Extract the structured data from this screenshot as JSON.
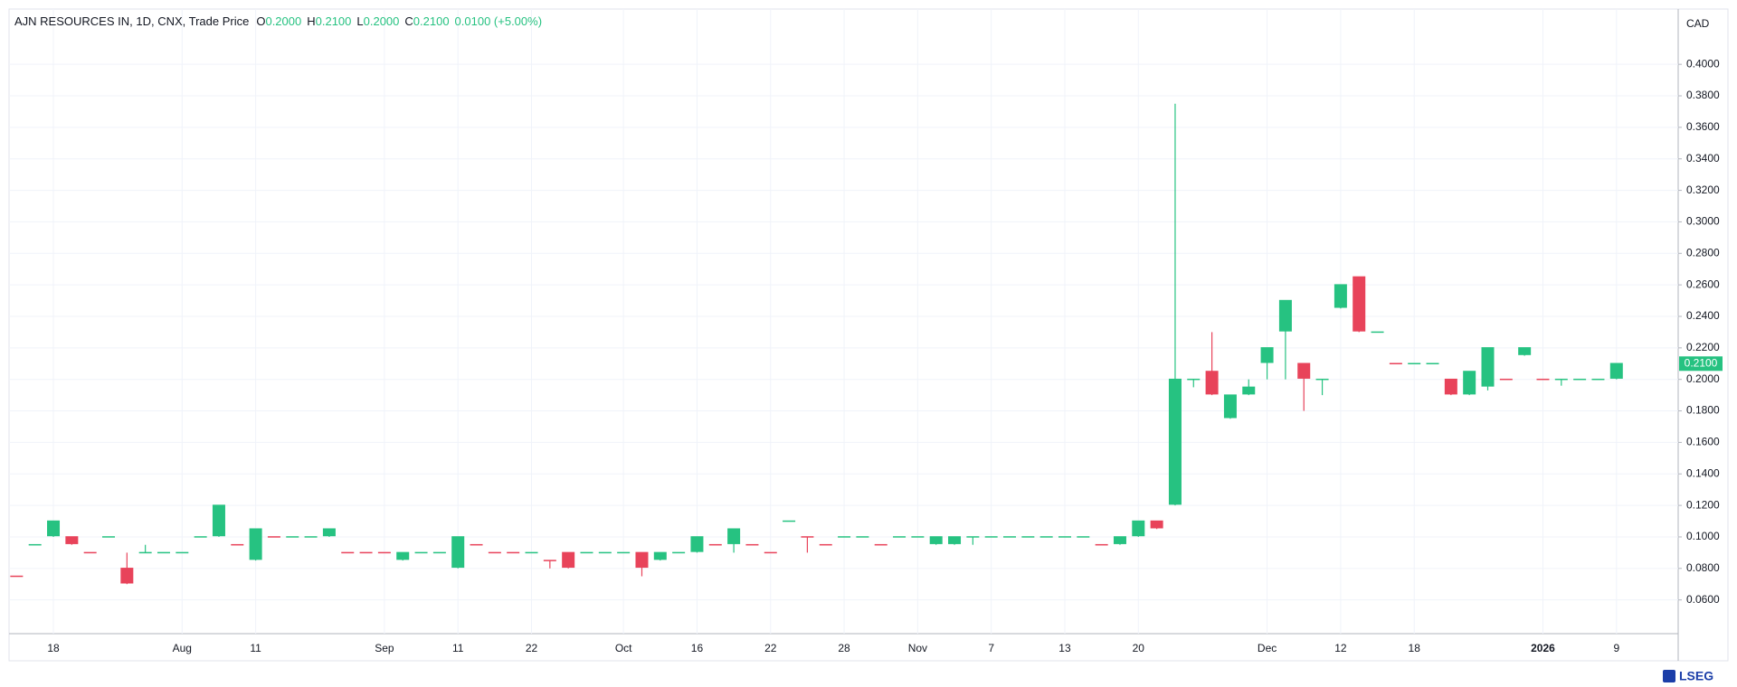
{
  "chart_data": {
    "type": "candlestick",
    "header": {
      "symbol": "AJN RESOURCES IN, 1D, CNX, Trade Price",
      "ohlc": [
        {
          "key": "O",
          "value": "0.2000"
        },
        {
          "key": "H",
          "value": "0.2100"
        },
        {
          "key": "L",
          "value": "0.2000"
        },
        {
          "key": "C",
          "value": "0.2100"
        }
      ],
      "change": "0.0100 (+5.00%)"
    },
    "currency": "CAD",
    "brand": "LSEG",
    "last_price": {
      "value": 0.21,
      "label": "0.2100"
    },
    "categories": [
      null,
      null,
      "18",
      null,
      null,
      null,
      null,
      null,
      null,
      "Aug",
      null,
      null,
      null,
      "11",
      null,
      null,
      null,
      null,
      null,
      null,
      "Sep",
      null,
      null,
      null,
      "11",
      null,
      null,
      null,
      "22",
      null,
      null,
      null,
      null,
      "Oct",
      null,
      null,
      null,
      "16",
      null,
      null,
      null,
      "22",
      null,
      null,
      null,
      "28",
      null,
      null,
      null,
      "Nov",
      null,
      null,
      null,
      "7",
      null,
      null,
      null,
      "13",
      null,
      null,
      null,
      "20",
      null,
      null,
      null,
      null,
      null,
      null,
      "Dec",
      null,
      null,
      null,
      "12",
      null,
      null,
      null,
      "18",
      null,
      null,
      null,
      null,
      null,
      null,
      "2026",
      null,
      null,
      null,
      "9"
    ],
    "bold_categories": [
      "2026"
    ],
    "open": [
      0.075,
      0.095,
      0.1,
      0.1,
      0.09,
      0.1,
      0.08,
      0.09,
      0.09,
      0.09,
      0.1,
      0.1,
      0.095,
      0.085,
      0.1,
      0.1,
      0.1,
      0.1,
      0.09,
      0.09,
      0.09,
      0.085,
      0.09,
      0.09,
      0.08,
      0.095,
      0.09,
      0.09,
      0.09,
      0.085,
      0.09,
      0.09,
      0.09,
      0.09,
      0.09,
      0.085,
      0.09,
      0.09,
      0.095,
      0.095,
      0.095,
      0.09,
      0.11,
      0.1,
      0.095,
      0.1,
      0.1,
      0.095,
      0.1,
      0.1,
      0.095,
      0.095,
      0.1,
      0.1,
      0.1,
      0.1,
      0.1,
      0.1,
      0.1,
      0.095,
      0.095,
      0.1,
      0.11,
      0.12,
      0.2,
      0.205,
      0.175,
      0.19,
      0.21,
      0.23,
      0.21,
      0.2,
      0.245,
      0.265,
      0.23,
      0.21,
      0.21,
      0.21,
      0.2,
      0.19,
      0.195,
      0.2,
      0.215,
      0.2,
      0.2,
      0.2,
      0.2,
      0.2
    ],
    "high": [
      0.075,
      0.095,
      0.11,
      0.1,
      0.09,
      0.1,
      0.09,
      0.095,
      0.09,
      0.09,
      0.1,
      0.12,
      0.095,
      0.105,
      0.1,
      0.1,
      0.1,
      0.105,
      0.09,
      0.09,
      0.09,
      0.09,
      0.09,
      0.09,
      0.1,
      0.095,
      0.09,
      0.09,
      0.09,
      0.085,
      0.09,
      0.09,
      0.09,
      0.09,
      0.09,
      0.09,
      0.09,
      0.1,
      0.095,
      0.105,
      0.095,
      0.09,
      0.11,
      0.1,
      0.095,
      0.1,
      0.1,
      0.095,
      0.1,
      0.1,
      0.1,
      0.1,
      0.1,
      0.1,
      0.1,
      0.1,
      0.1,
      0.1,
      0.1,
      0.095,
      0.1,
      0.11,
      0.11,
      0.375,
      0.2,
      0.23,
      0.19,
      0.2,
      0.22,
      0.25,
      0.21,
      0.2,
      0.26,
      0.265,
      0.23,
      0.21,
      0.21,
      0.21,
      0.2,
      0.205,
      0.22,
      0.2,
      0.22,
      0.2,
      0.2,
      0.2,
      0.2,
      0.21
    ],
    "low": [
      0.075,
      0.095,
      0.1,
      0.095,
      0.09,
      0.1,
      0.07,
      0.09,
      0.09,
      0.09,
      0.1,
      0.1,
      0.095,
      0.085,
      0.1,
      0.1,
      0.1,
      0.1,
      0.09,
      0.09,
      0.09,
      0.085,
      0.09,
      0.09,
      0.08,
      0.095,
      0.09,
      0.09,
      0.09,
      0.08,
      0.08,
      0.09,
      0.09,
      0.09,
      0.075,
      0.085,
      0.09,
      0.09,
      0.095,
      0.09,
      0.095,
      0.09,
      0.11,
      0.09,
      0.095,
      0.1,
      0.1,
      0.095,
      0.1,
      0.1,
      0.095,
      0.095,
      0.095,
      0.1,
      0.1,
      0.1,
      0.1,
      0.1,
      0.1,
      0.095,
      0.095,
      0.1,
      0.105,
      0.12,
      0.195,
      0.19,
      0.175,
      0.19,
      0.2,
      0.2,
      0.18,
      0.19,
      0.245,
      0.23,
      0.23,
      0.21,
      0.21,
      0.21,
      0.19,
      0.19,
      0.193,
      0.2,
      0.215,
      0.2,
      0.196,
      0.2,
      0.2,
      0.2
    ],
    "close": [
      0.075,
      0.095,
      0.11,
      0.095,
      0.09,
      0.1,
      0.07,
      0.09,
      0.09,
      0.09,
      0.1,
      0.12,
      0.095,
      0.105,
      0.1,
      0.1,
      0.1,
      0.105,
      0.09,
      0.09,
      0.09,
      0.09,
      0.09,
      0.09,
      0.1,
      0.095,
      0.09,
      0.09,
      0.09,
      0.085,
      0.08,
      0.09,
      0.09,
      0.09,
      0.08,
      0.09,
      0.09,
      0.1,
      0.095,
      0.105,
      0.095,
      0.09,
      0.11,
      0.1,
      0.095,
      0.1,
      0.1,
      0.095,
      0.1,
      0.1,
      0.1,
      0.1,
      0.1,
      0.1,
      0.1,
      0.1,
      0.1,
      0.1,
      0.1,
      0.095,
      0.1,
      0.11,
      0.105,
      0.2,
      0.2,
      0.19,
      0.19,
      0.195,
      0.22,
      0.25,
      0.2,
      0.2,
      0.26,
      0.23,
      0.23,
      0.21,
      0.21,
      0.21,
      0.19,
      0.205,
      0.22,
      0.2,
      0.22,
      0.2,
      0.2,
      0.2,
      0.2,
      0.21
    ],
    "candle_colors": [
      "#e8435a",
      "#26c281",
      "#26c281",
      "#e8435a",
      "#e8435a",
      "#26c281",
      "#e8435a",
      "#26c281",
      "#26c281",
      "#26c281",
      "#26c281",
      "#26c281",
      "#e8435a",
      "#26c281",
      "#e8435a",
      "#26c281",
      "#26c281",
      "#26c281",
      "#e8435a",
      "#e8435a",
      "#e8435a",
      "#26c281",
      "#26c281",
      "#26c281",
      "#26c281",
      "#e8435a",
      "#e8435a",
      "#e8435a",
      "#26c281",
      "#e8435a",
      "#e8435a",
      "#26c281",
      "#26c281",
      "#26c281",
      "#e8435a",
      "#26c281",
      "#26c281",
      "#26c281",
      "#e8435a",
      "#26c281",
      "#e8435a",
      "#e8435a",
      "#26c281",
      "#e8435a",
      "#e8435a",
      "#26c281",
      "#26c281",
      "#e8435a",
      "#26c281",
      "#26c281",
      "#26c281",
      "#26c281",
      "#26c281",
      "#26c281",
      "#26c281",
      "#26c281",
      "#26c281",
      "#26c281",
      "#26c281",
      "#e8435a",
      "#26c281",
      "#26c281",
      "#e8435a",
      "#26c281",
      "#26c281",
      "#e8435a",
      "#26c281",
      "#26c281",
      "#26c281",
      "#26c281",
      "#e8435a",
      "#26c281",
      "#26c281",
      "#e8435a",
      "#26c281",
      "#e8435a",
      "#26c281",
      "#26c281",
      "#e8435a",
      "#26c281",
      "#26c281",
      "#e8435a",
      "#26c281",
      "#e8435a",
      "#26c281",
      "#26c281",
      "#26c281",
      "#26c281"
    ],
    "up_color": "#26c281",
    "ylim": [
      0.0403,
      0.4351
    ],
    "yticks": [
      {
        "value": 0.06,
        "label": "0.0600"
      },
      {
        "value": 0.08,
        "label": "0.0800"
      },
      {
        "value": 0.1,
        "label": "0.1000"
      },
      {
        "value": 0.12,
        "label": "0.1200"
      },
      {
        "value": 0.14,
        "label": "0.1400"
      },
      {
        "value": 0.16,
        "label": "0.1600"
      },
      {
        "value": 0.18,
        "label": "0.1800"
      },
      {
        "value": 0.2,
        "label": "0.2000"
      },
      {
        "value": 0.22,
        "label": "0.2200"
      },
      {
        "value": 0.24,
        "label": "0.2400"
      },
      {
        "value": 0.26,
        "label": "0.2600"
      },
      {
        "value": 0.28,
        "label": "0.2800"
      },
      {
        "value": 0.3,
        "label": "0.3000"
      },
      {
        "value": 0.32,
        "label": "0.3200"
      },
      {
        "value": 0.34,
        "label": "0.3400"
      },
      {
        "value": 0.36,
        "label": "0.3600"
      },
      {
        "value": 0.38,
        "label": "0.3800"
      },
      {
        "value": 0.4,
        "label": "0.4000"
      }
    ],
    "grid": true
  }
}
